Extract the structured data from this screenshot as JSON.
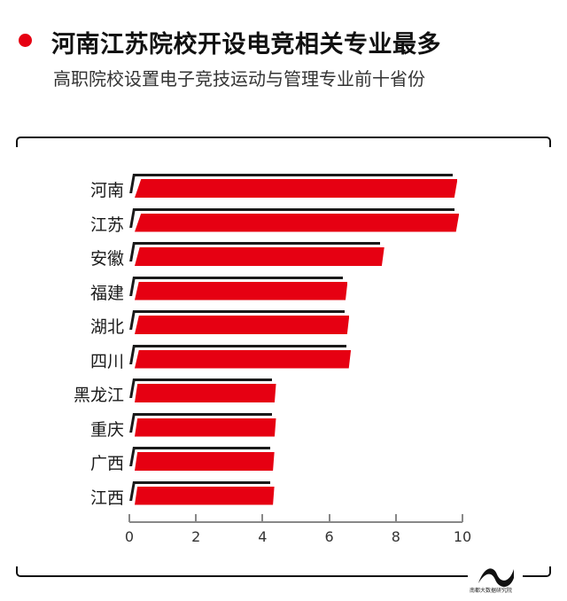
{
  "header": {
    "title": "河南江苏院校开设电竞相关专业最多",
    "subtitle": "高职院校设置电子竞技运动与管理专业前十省份",
    "accent_color": "#e60012"
  },
  "logo": {
    "text": "南都大数据研究院"
  },
  "chart_data": {
    "type": "bar",
    "orientation": "horizontal",
    "title": "河南江苏院校开设电竞相关专业最多",
    "subtitle": "高职院校设置电子竞技运动与管理专业前十省份",
    "categories": [
      "河南",
      "江苏",
      "安徽",
      "福建",
      "湖北",
      "四川",
      "黑龙江",
      "重庆",
      "广西",
      "江西"
    ],
    "values": [
      9.8,
      9.85,
      7.6,
      6.5,
      6.55,
      6.6,
      4.35,
      4.35,
      4.3,
      4.3
    ],
    "xlabel": "",
    "ylabel": "",
    "xlim": [
      0,
      10
    ],
    "xticks": [
      "0",
      "2",
      "4",
      "6",
      "8",
      "10"
    ],
    "grid": false,
    "legend": null,
    "bar_color": "#e60012"
  }
}
